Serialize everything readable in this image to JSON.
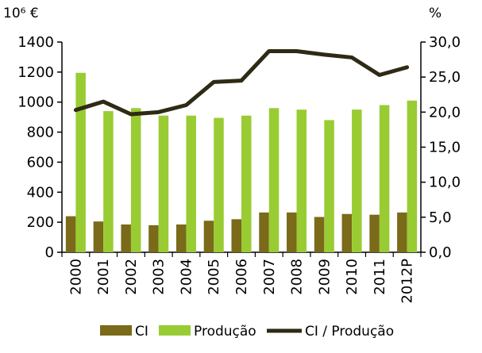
{
  "chart_data": {
    "type": "bar",
    "categories": [
      "2000",
      "2001",
      "2002",
      "2003",
      "2004",
      "2005",
      "2006",
      "2007",
      "2008",
      "2009",
      "2010",
      "2011",
      "2012P"
    ],
    "y_left": {
      "unit": "10⁶ €",
      "range": [
        0,
        1400
      ],
      "ticks": [
        "0",
        "200",
        "400",
        "600",
        "800",
        "1000",
        "1200",
        "1400"
      ]
    },
    "y_right": {
      "unit": "%",
      "range": [
        0,
        30
      ],
      "ticks": [
        "0,0",
        "5,0",
        "10,0",
        "15,0",
        "20,0",
        "25,0",
        "30,0"
      ]
    },
    "series": [
      {
        "name": "CI",
        "type": "bar",
        "axis": "left",
        "color": "#7a6a1a",
        "values": [
          240,
          205,
          185,
          180,
          185,
          210,
          220,
          265,
          265,
          235,
          255,
          250,
          265
        ]
      },
      {
        "name": "Produção",
        "type": "bar",
        "axis": "left",
        "color": "#99cc33",
        "values": [
          1195,
          940,
          960,
          910,
          910,
          895,
          910,
          960,
          950,
          880,
          950,
          980,
          1010
        ]
      },
      {
        "name": "CI / Produção",
        "type": "line",
        "axis": "right",
        "color": "#2e2a14",
        "values": [
          20.3,
          21.5,
          19.7,
          20.0,
          21.0,
          24.3,
          24.5,
          28.7,
          28.7,
          28.2,
          27.8,
          25.3,
          26.4
        ]
      }
    ],
    "grid": false,
    "legend_position": "bottom"
  }
}
